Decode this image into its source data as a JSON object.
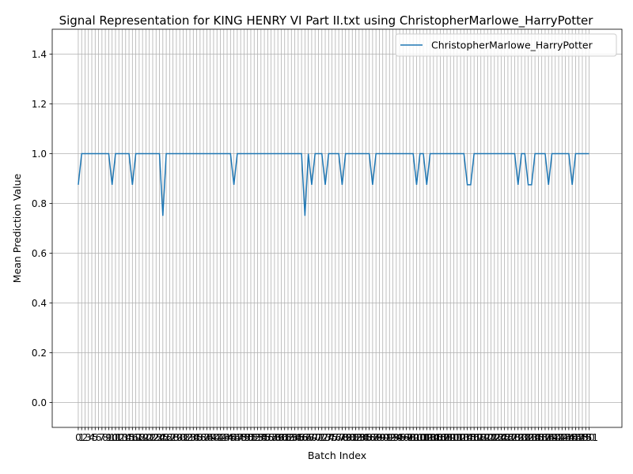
{
  "chart_data": {
    "type": "line",
    "title": "Signal Representation for KING HENRY VI Part II.txt using ChristopherMarlowe_HarryPotter",
    "xlabel": "Batch Index",
    "ylabel": "Mean Prediction Value",
    "xlim": [
      -7.7,
      160.7
    ],
    "ylim": [
      -0.1,
      1.5
    ],
    "yticks": [
      0.0,
      0.2,
      0.4,
      0.6,
      0.8,
      1.0,
      1.2,
      1.4
    ],
    "ytick_labels": [
      "0.0",
      "0.2",
      "0.4",
      "0.6",
      "0.8",
      "1.0",
      "1.2",
      "1.4"
    ],
    "grid": true,
    "legend": {
      "placement": "top-right"
    },
    "series": [
      {
        "name": "ChristopherMarlowe_HarryPotter",
        "color": "#1f77b4",
        "x_start": 0,
        "values": [
          0.875,
          1,
          1,
          1,
          1,
          1,
          1,
          1,
          1,
          1,
          0.875,
          1,
          1,
          1,
          1,
          1,
          0.875,
          1,
          1,
          1,
          1,
          1,
          1,
          1,
          1,
          0.75,
          1,
          1,
          1,
          1,
          1,
          1,
          1,
          1,
          1,
          1,
          1,
          1,
          1,
          1,
          1,
          1,
          1,
          1,
          1,
          1,
          0.875,
          1,
          1,
          1,
          1,
          1,
          1,
          1,
          1,
          1,
          1,
          1,
          1,
          1,
          1,
          1,
          1,
          1,
          1,
          1,
          1,
          0.75,
          1,
          0.875,
          1,
          1,
          1,
          0.875,
          1,
          1,
          1,
          1,
          0.875,
          1,
          1,
          1,
          1,
          1,
          1,
          1,
          1,
          0.875,
          1,
          1,
          1,
          1,
          1,
          1,
          1,
          1,
          1,
          1,
          1,
          1,
          0.875,
          1,
          1,
          0.875,
          1,
          1,
          1,
          1,
          1,
          1,
          1,
          1,
          1,
          1,
          1,
          0.875,
          0.875,
          1,
          1,
          1,
          1,
          1,
          1,
          1,
          1,
          1,
          1,
          1,
          1,
          1,
          0.875,
          1,
          1,
          0.875,
          0.875,
          1,
          1,
          1,
          1,
          0.875,
          1,
          1,
          1,
          1,
          1,
          1,
          0.875,
          1,
          1,
          1,
          1,
          1
        ]
      }
    ],
    "x_tick_labels_note": "tick at every integer batch index 0..153"
  }
}
